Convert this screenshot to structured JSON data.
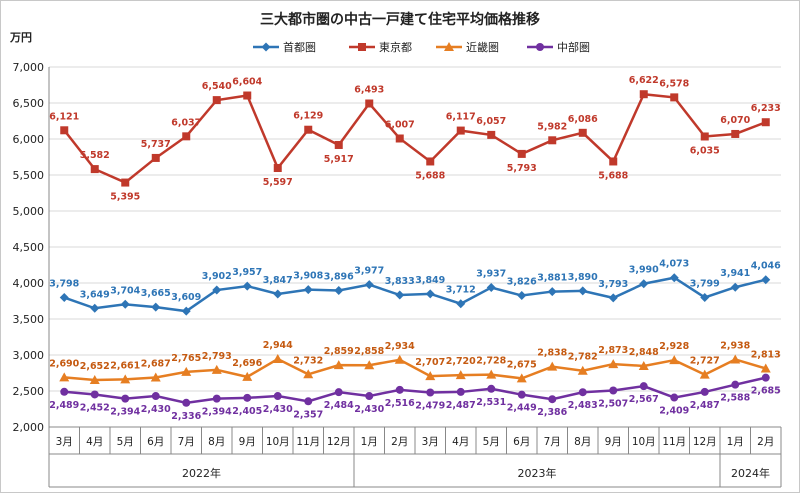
{
  "chart_data": {
    "type": "line",
    "title": "三大都市圏の中古一戸建て住宅平均価格推移",
    "y_unit": "万円",
    "ylim": [
      2000,
      7000
    ],
    "ytick_step": 500,
    "grid": "horizontal",
    "legend_position": "top",
    "categories": [
      "3月",
      "4月",
      "5月",
      "6月",
      "7月",
      "8月",
      "9月",
      "10月",
      "11月",
      "12月",
      "1月",
      "2月",
      "3月",
      "4月",
      "5月",
      "6月",
      "7月",
      "8月",
      "9月",
      "10月",
      "11月",
      "12月",
      "1月",
      "2月"
    ],
    "years": [
      {
        "label": "2022年",
        "count": 10
      },
      {
        "label": "2023年",
        "count": 12
      },
      {
        "label": "2024年",
        "count": 2
      }
    ],
    "series": [
      {
        "name": "首都圏",
        "color": "#2e75b6",
        "marker": "diamond",
        "values": [
          3798,
          3649,
          3704,
          3665,
          3609,
          3902,
          3957,
          3847,
          3908,
          3896,
          3977,
          3833,
          3849,
          3712,
          3937,
          3826,
          3881,
          3890,
          3793,
          3990,
          4073,
          3799,
          3941,
          4046
        ]
      },
      {
        "name": "東京都",
        "color": "#c0392b",
        "marker": "square",
        "values": [
          6121,
          5582,
          5395,
          5737,
          6037,
          6540,
          6604,
          5597,
          6129,
          5917,
          6493,
          6007,
          5688,
          6117,
          6057,
          5793,
          5982,
          6086,
          5688,
          6622,
          6578,
          6035,
          6070,
          6233
        ]
      },
      {
        "name": "近畿圏",
        "color": "#e67e22",
        "marker": "triangle",
        "values": [
          2690,
          2652,
          2661,
          2687,
          2765,
          2793,
          2696,
          2944,
          2732,
          2859,
          2858,
          2934,
          2707,
          2720,
          2728,
          2675,
          2838,
          2782,
          2873,
          2848,
          2928,
          2727,
          2938,
          2813
        ]
      },
      {
        "name": "中部圏",
        "color": "#7030a0",
        "marker": "circle",
        "values": [
          2489,
          2452,
          2394,
          2430,
          2336,
          2394,
          2405,
          2430,
          2357,
          2484,
          2430,
          2516,
          2479,
          2487,
          2531,
          2449,
          2386,
          2483,
          2507,
          2567,
          2409,
          2487,
          2588,
          2685
        ]
      }
    ]
  }
}
